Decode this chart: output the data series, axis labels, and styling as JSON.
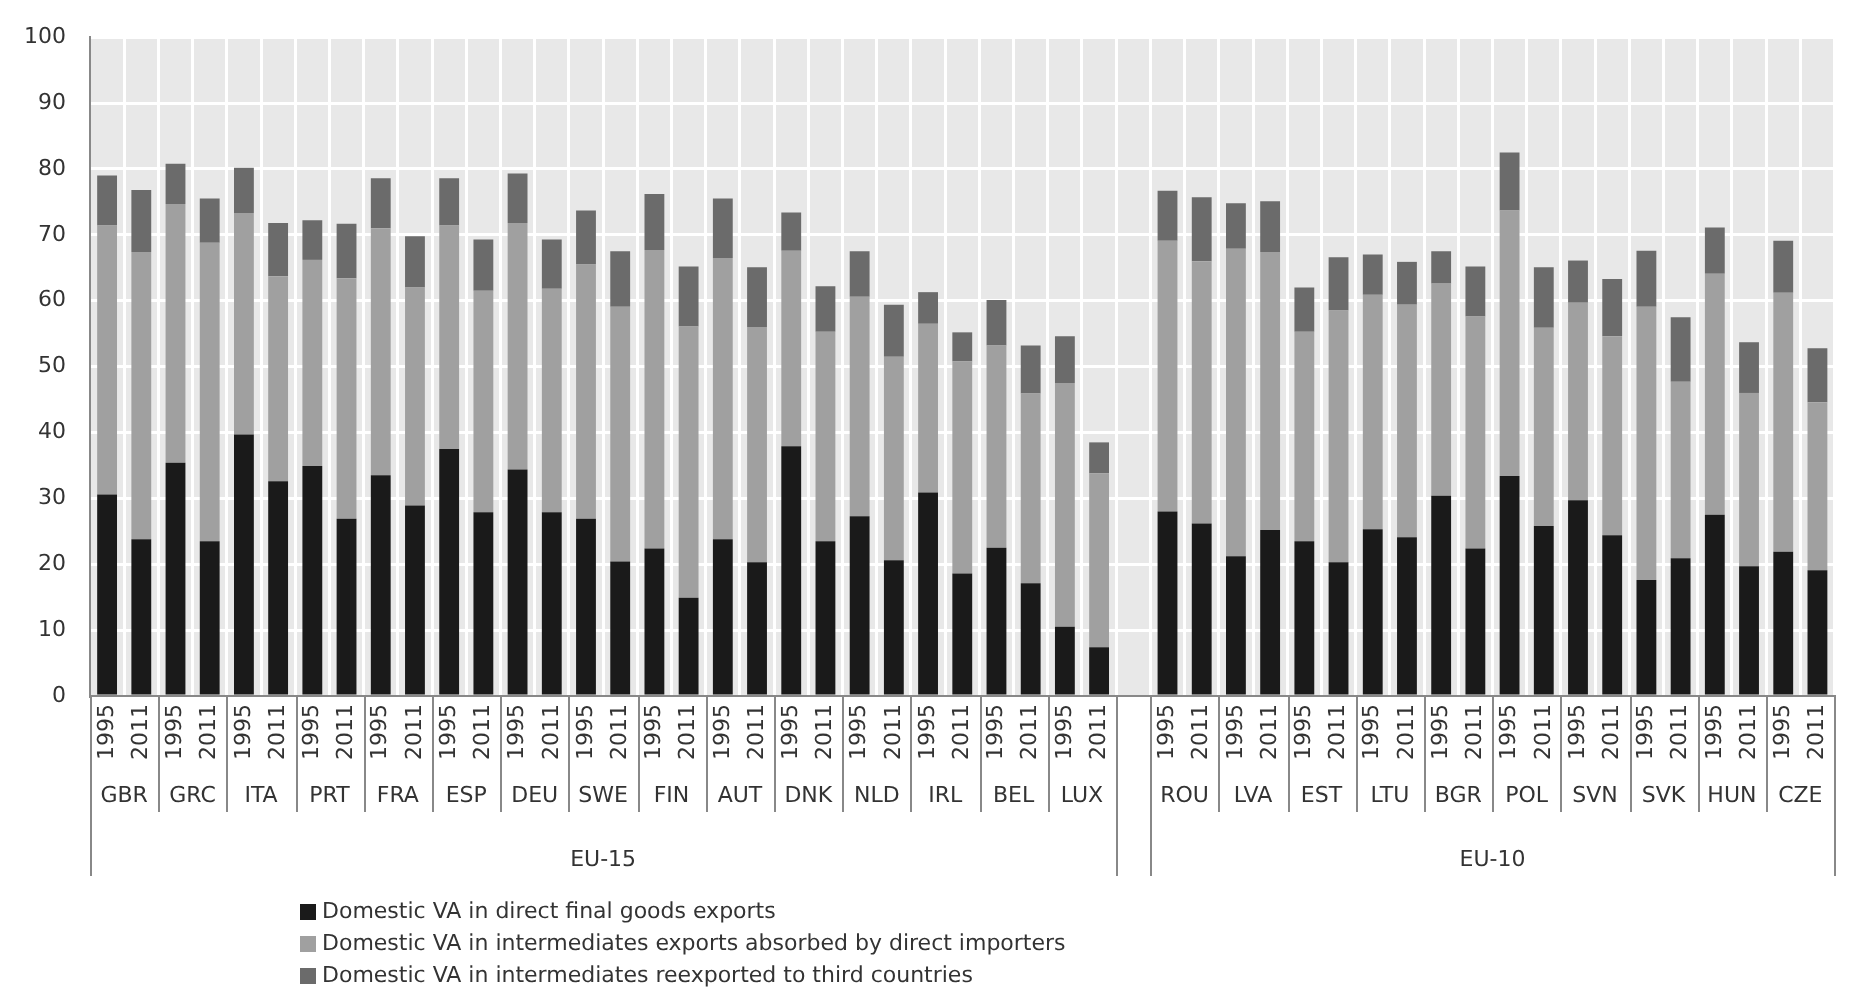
{
  "chart_data": {
    "type": "bar",
    "stacked": true,
    "grid": true,
    "legend": "bottom",
    "ylim": [
      0,
      100
    ],
    "yticks": [
      0,
      10,
      20,
      30,
      40,
      50,
      60,
      70,
      80,
      90,
      100
    ],
    "categories": [
      "1995",
      "2011",
      "1995",
      "2011",
      "1995",
      "2011",
      "1995",
      "2011",
      "1995",
      "2011",
      "1995",
      "2011",
      "1995",
      "2011",
      "1995",
      "2011",
      "1995",
      "2011",
      "1995",
      "2011",
      "1995",
      "2011",
      "1995",
      "2011",
      "1995",
      "2011",
      "1995",
      "2011",
      "1995",
      "2011",
      null,
      "1995",
      "2011",
      "1995",
      "2011",
      "1995",
      "2011",
      "1995",
      "2011",
      "1995",
      "2011",
      "1995",
      "2011",
      "1995",
      "2011",
      "1995",
      "2011",
      "1995",
      "2011",
      "1995",
      "2011"
    ],
    "series": [
      {
        "name": "Domestic VA in direct final goods exports",
        "color": "#1a1a1a",
        "values": [
          30.6,
          23.8,
          35.4,
          23.5,
          39.7,
          32.6,
          34.9,
          26.9,
          33.5,
          28.9,
          37.5,
          27.9,
          34.4,
          27.9,
          26.9,
          20.4,
          22.4,
          14.9,
          23.8,
          20.3,
          37.9,
          23.5,
          27.3,
          20.6,
          30.9,
          18.6,
          22.5,
          17.1,
          10.5,
          7.4,
          null,
          28.0,
          26.2,
          21.2,
          25.2,
          23.5,
          20.3,
          25.3,
          24.1,
          30.4,
          22.4,
          33.4,
          25.8,
          29.7,
          24.4,
          17.6,
          20.9,
          27.5,
          19.7,
          21.9,
          19.1
        ]
      },
      {
        "name": "Domestic VA in intermediates exports absorbed by direct importers",
        "color": "#a0a0a0",
        "values": [
          40.8,
          43.6,
          39.3,
          45.3,
          33.6,
          31.1,
          31.3,
          36.5,
          37.5,
          33.1,
          33.9,
          33.6,
          37.4,
          33.9,
          38.6,
          38.7,
          45.3,
          41.2,
          42.7,
          35.7,
          29.7,
          31.8,
          33.3,
          30.9,
          25.6,
          32.2,
          30.7,
          28.8,
          37.0,
          26.4,
          null,
          41.1,
          39.8,
          46.7,
          42.2,
          31.8,
          38.2,
          35.6,
          35.3,
          32.2,
          35.2,
          40.3,
          30.1,
          30.0,
          30.2,
          41.5,
          26.8,
          36.6,
          26.3,
          39.3,
          25.5
        ]
      },
      {
        "name": "Domestic VA in intermediates reexported to third countries",
        "color": "#6b6b6b",
        "values": [
          7.6,
          9.4,
          6.1,
          6.7,
          6.9,
          8.1,
          6.0,
          8.3,
          7.6,
          7.8,
          7.2,
          7.8,
          7.5,
          7.5,
          8.2,
          8.4,
          8.5,
          9.1,
          9.0,
          9.1,
          5.8,
          6.9,
          6.9,
          7.9,
          4.8,
          4.4,
          6.9,
          7.3,
          7.1,
          4.7,
          null,
          7.6,
          9.7,
          6.9,
          7.7,
          6.7,
          8.1,
          6.1,
          6.5,
          4.9,
          7.6,
          8.8,
          9.2,
          6.4,
          8.7,
          8.5,
          9.8,
          7.0,
          7.7,
          7.9,
          8.2
        ]
      }
    ],
    "annotations": [
      "GBR",
      "GRC",
      "ITA",
      "PRT",
      "FRA",
      "ESP",
      "DEU",
      "SWE",
      "FIN",
      "AUT",
      "DNK",
      "NLD",
      "IRL",
      "BEL",
      "LUX",
      "ROU",
      "LVA",
      "EST",
      "LTU",
      "BGR",
      "POL",
      "SVN",
      "SVK",
      "HUN",
      "CZE",
      "EU-15",
      "EU-10"
    ]
  }
}
